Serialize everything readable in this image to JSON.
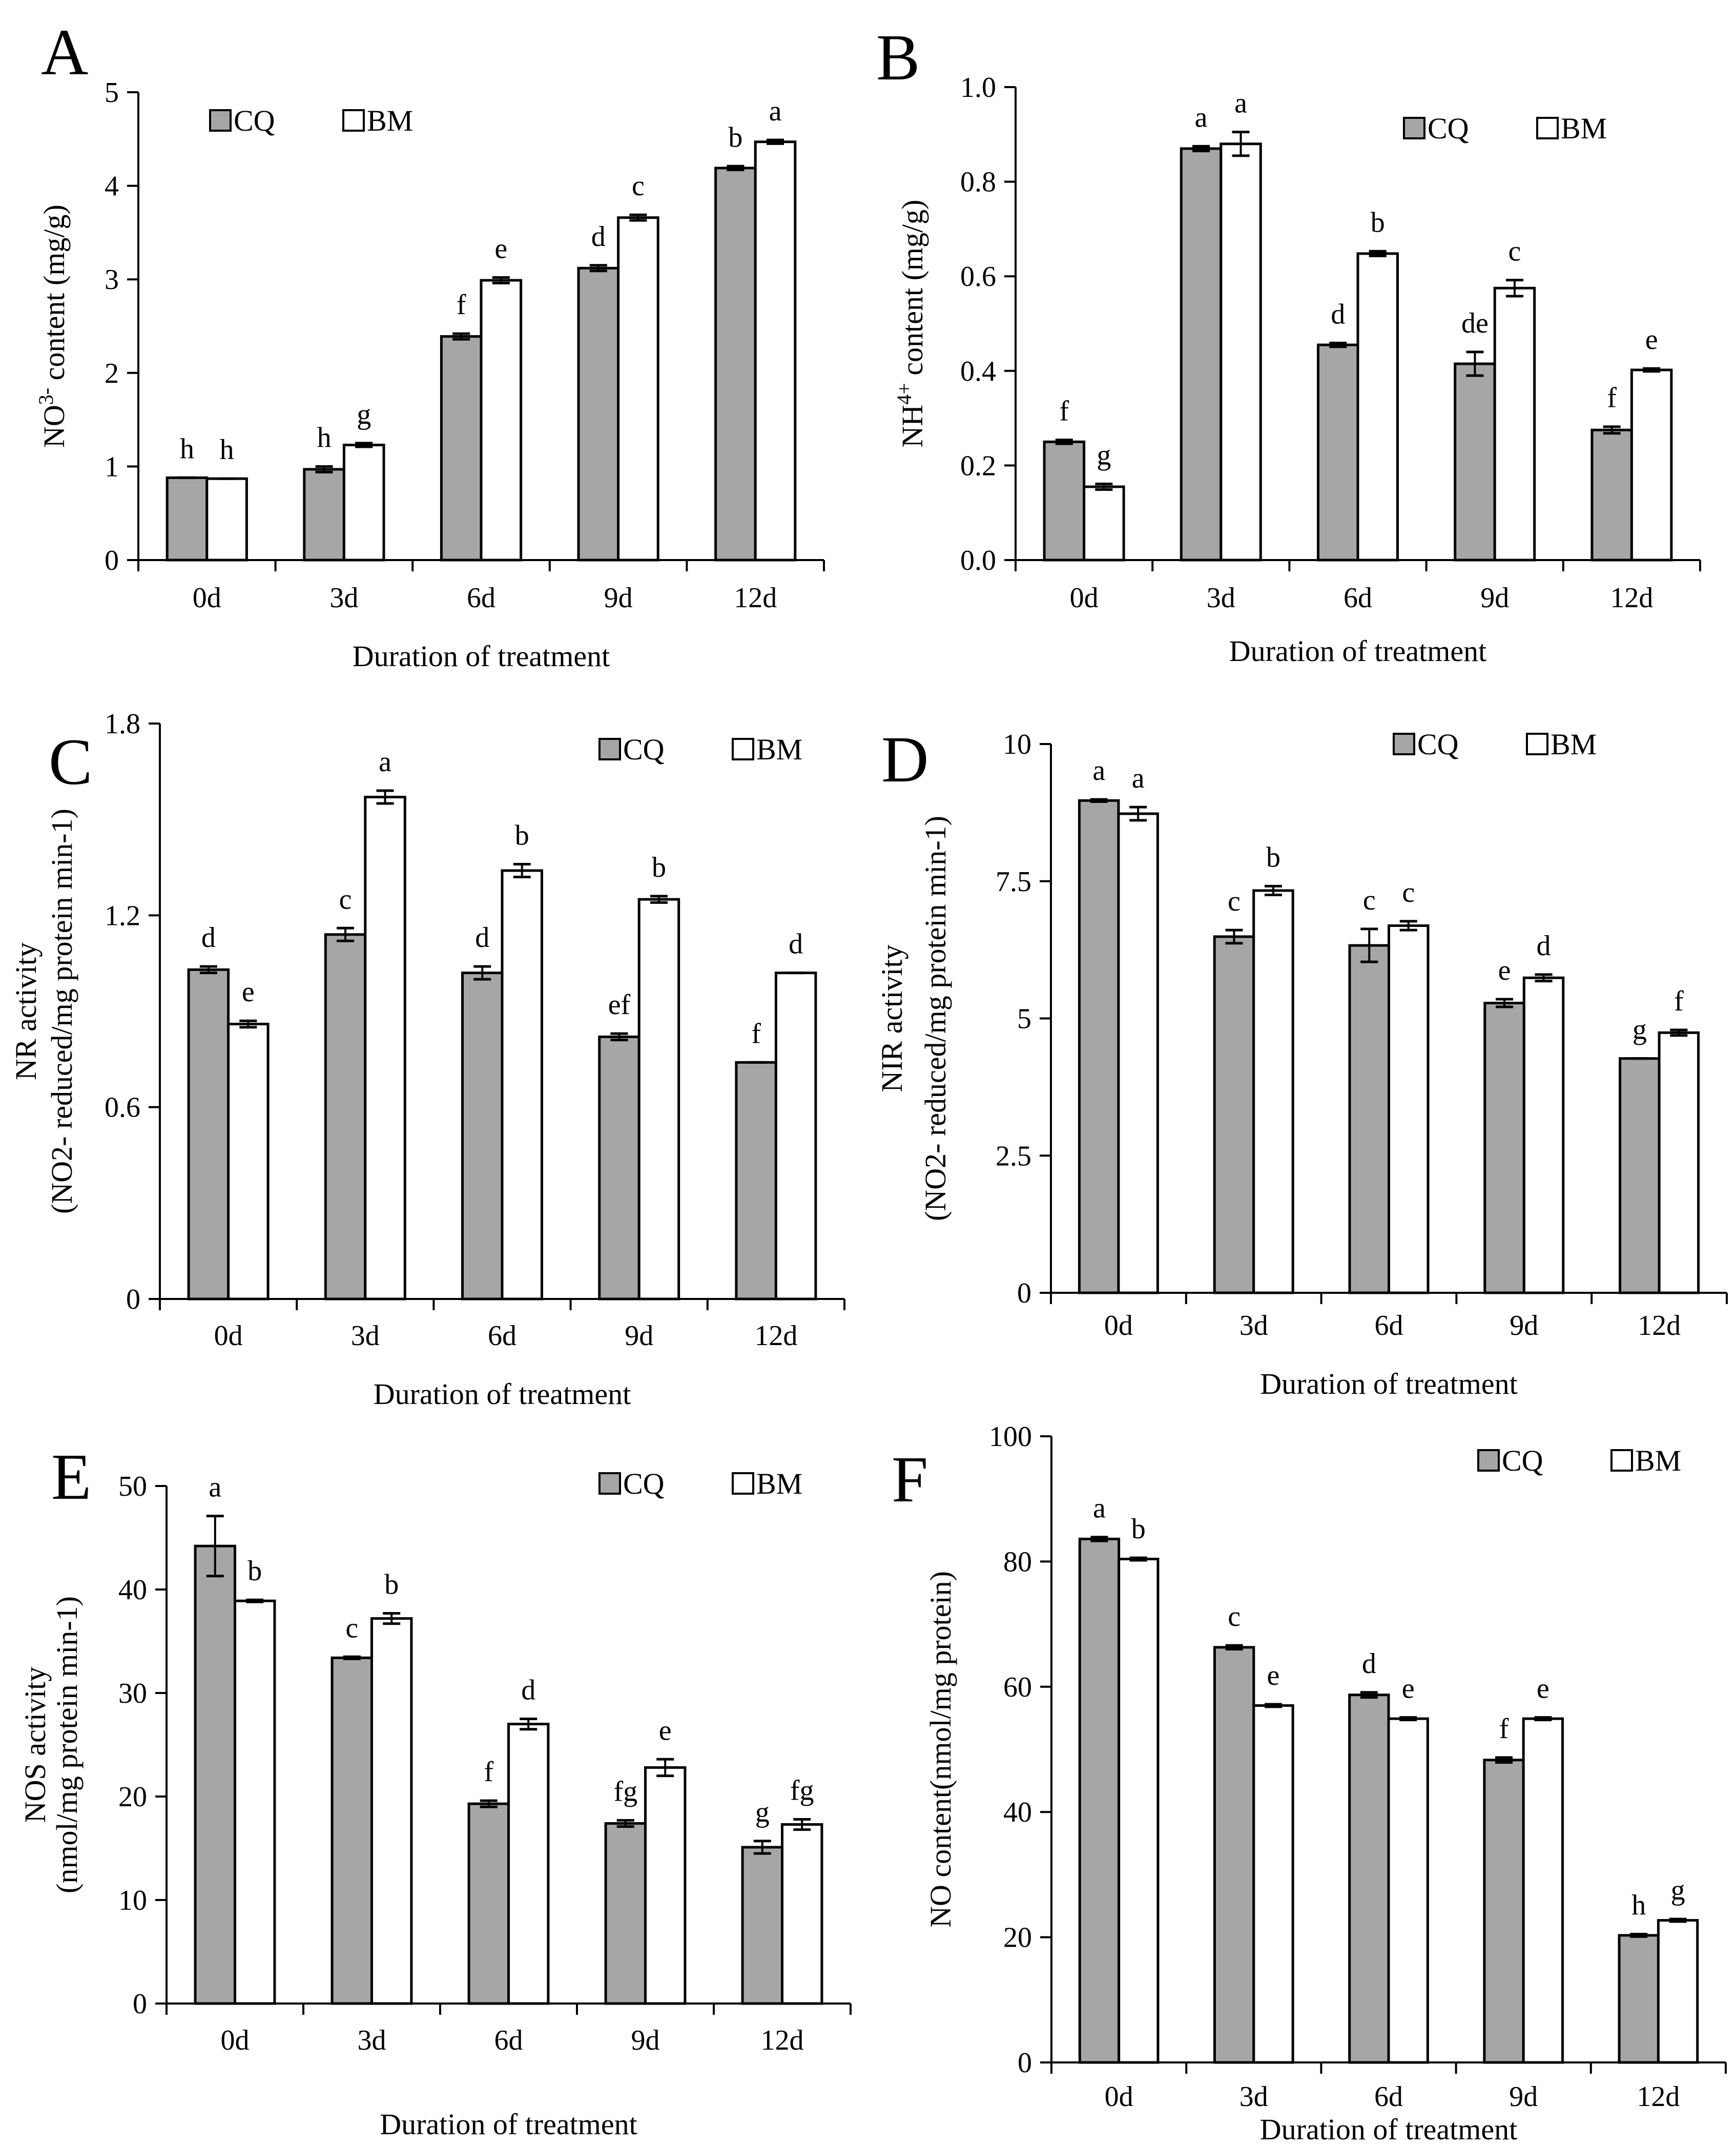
{
  "colors": {
    "CQ": "#a6a6a6",
    "BM": "#ffffff",
    "axis": "#000000"
  },
  "chart_data": [
    {
      "panel": "A",
      "type": "bar",
      "title": "",
      "xlabel": "Duration of treatment",
      "ylabel_parts": [
        "NO",
        "3-",
        " content (mg/g)"
      ],
      "categories": [
        "0d",
        "3d",
        "6d",
        "9d",
        "12d"
      ],
      "ylim": [
        0,
        5
      ],
      "yticks": [
        0,
        1,
        2,
        3,
        4,
        5
      ],
      "ytick_labels": [
        "0",
        "1",
        "2",
        "3",
        "4",
        "5"
      ],
      "legend": [
        "CQ",
        "BM"
      ],
      "legend_position": "top-left",
      "series": [
        {
          "name": "CQ",
          "values": [
            0.88,
            0.97,
            2.39,
            3.12,
            4.19
          ],
          "errors": [
            0.0,
            0.03,
            0.03,
            0.03,
            0.02
          ],
          "letters": [
            "h",
            "h",
            "f",
            "d",
            "b"
          ]
        },
        {
          "name": "BM",
          "values": [
            0.87,
            1.23,
            2.99,
            3.66,
            4.47
          ],
          "errors": [
            0.0,
            0.02,
            0.03,
            0.03,
            0.02
          ],
          "letters": [
            "h",
            "g",
            "e",
            "c",
            "a"
          ]
        }
      ]
    },
    {
      "panel": "B",
      "type": "bar",
      "title": "",
      "xlabel": "Duration of treatment",
      "ylabel_parts": [
        "NH",
        "4+",
        " content (mg/g)"
      ],
      "categories": [
        "0d",
        "3d",
        "6d",
        "9d",
        "12d"
      ],
      "ylim": [
        0,
        1
      ],
      "yticks": [
        0,
        0.2,
        0.4,
        0.6,
        0.8,
        1.0
      ],
      "ytick_labels": [
        "0.0",
        "0.2",
        "0.4",
        "0.6",
        "0.8",
        "1.0"
      ],
      "legend": [
        "CQ",
        "BM"
      ],
      "legend_position": "top-right",
      "series": [
        {
          "name": "CQ",
          "values": [
            0.25,
            0.87,
            0.455,
            0.415,
            0.275
          ],
          "errors": [
            0.004,
            0.005,
            0.004,
            0.025,
            0.007
          ],
          "letters": [
            "f",
            "a",
            "d",
            "de",
            "f"
          ]
        },
        {
          "name": "BM",
          "values": [
            0.155,
            0.88,
            0.648,
            0.575,
            0.402
          ],
          "errors": [
            0.006,
            0.025,
            0.005,
            0.017,
            0.003
          ],
          "letters": [
            "g",
            "a",
            "b",
            "c",
            "e"
          ]
        }
      ]
    },
    {
      "panel": "C",
      "type": "bar",
      "title": "",
      "xlabel": "Duration of treatment",
      "ylabel_lines": [
        "NR activity",
        "(NO2- reduced/mg protein min-1)"
      ],
      "categories": [
        "0d",
        "3d",
        "6d",
        "9d",
        "12d"
      ],
      "ylim": [
        0,
        1.8
      ],
      "yticks": [
        0,
        0.6,
        1.2,
        1.8
      ],
      "ytick_labels": [
        "0",
        "0.6",
        "1.2",
        "1.8"
      ],
      "legend": [
        "CQ",
        "BM"
      ],
      "legend_position": "top-right",
      "series": [
        {
          "name": "CQ",
          "values": [
            1.03,
            1.14,
            1.02,
            0.82,
            0.74
          ],
          "errors": [
            0.01,
            0.02,
            0.02,
            0.01,
            0.0
          ],
          "letters": [
            "d",
            "c",
            "d",
            "ef",
            "f"
          ]
        },
        {
          "name": "BM",
          "values": [
            0.86,
            1.57,
            1.34,
            1.25,
            1.02
          ],
          "errors": [
            0.01,
            0.02,
            0.02,
            0.01,
            0.0
          ],
          "letters": [
            "e",
            "a",
            "b",
            "b",
            "d"
          ]
        }
      ]
    },
    {
      "panel": "D",
      "type": "bar",
      "title": "",
      "xlabel": "Duration of treatment",
      "ylabel_lines": [
        "NIR activity",
        "(NO2- reduced/mg protein min-1)"
      ],
      "categories": [
        "0d",
        "3d",
        "6d",
        "9d",
        "12d"
      ],
      "ylim": [
        0,
        10
      ],
      "yticks": [
        0,
        2.5,
        5,
        7.5,
        10
      ],
      "ytick_labels": [
        "0",
        "2.5",
        "5",
        "7.5",
        "10"
      ],
      "legend": [
        "CQ",
        "BM"
      ],
      "legend_position": "top-right",
      "series": [
        {
          "name": "CQ",
          "values": [
            8.97,
            6.49,
            6.33,
            5.28,
            4.27
          ],
          "errors": [
            0.02,
            0.12,
            0.3,
            0.07,
            0.0
          ],
          "letters": [
            "a",
            "c",
            "c",
            "e",
            "g"
          ]
        },
        {
          "name": "BM",
          "values": [
            8.73,
            7.33,
            6.69,
            5.74,
            4.74
          ],
          "errors": [
            0.12,
            0.08,
            0.08,
            0.06,
            0.05
          ],
          "letters": [
            "a",
            "b",
            "c",
            "d",
            "f"
          ]
        }
      ]
    },
    {
      "panel": "E",
      "type": "bar",
      "title": "",
      "xlabel": "Duration of treatment",
      "ylabel_lines": [
        "NOS activity",
        "(nmol/mg protein min-1)"
      ],
      "categories": [
        "0d",
        "3d",
        "6d",
        "9d",
        "12d"
      ],
      "ylim": [
        0,
        50
      ],
      "yticks": [
        0,
        10,
        20,
        30,
        40,
        50
      ],
      "ytick_labels": [
        "0",
        "10",
        "20",
        "30",
        "40",
        "50"
      ],
      "legend": [
        "CQ",
        "BM"
      ],
      "legend_position": "top-right",
      "series": [
        {
          "name": "CQ",
          "values": [
            44.2,
            33.4,
            19.3,
            17.4,
            15.1
          ],
          "errors": [
            2.9,
            0.1,
            0.3,
            0.3,
            0.6
          ],
          "letters": [
            "a",
            "c",
            "f",
            "fg",
            "g"
          ]
        },
        {
          "name": "BM",
          "values": [
            38.9,
            37.2,
            27.0,
            22.8,
            17.3
          ],
          "errors": [
            0.1,
            0.5,
            0.5,
            0.8,
            0.5
          ],
          "letters": [
            "b",
            "b",
            "d",
            "e",
            "fg"
          ]
        }
      ]
    },
    {
      "panel": "F",
      "type": "bar",
      "title": "",
      "xlabel": "Duration of treatment",
      "ylabel_lines": [
        "NO content(nmol/mg protein)"
      ],
      "categories": [
        "0d",
        "3d",
        "6d",
        "9d",
        "12d"
      ],
      "ylim": [
        0,
        100
      ],
      "yticks": [
        0,
        20,
        40,
        60,
        80,
        100
      ],
      "ytick_labels": [
        "0",
        "20",
        "40",
        "60",
        "80",
        "100"
      ],
      "legend": [
        "CQ",
        "BM"
      ],
      "legend_position": "top-right",
      "series": [
        {
          "name": "CQ",
          "values": [
            83.6,
            66.3,
            58.7,
            48.3,
            20.3
          ],
          "errors": [
            0.3,
            0.3,
            0.4,
            0.4,
            0.2
          ],
          "letters": [
            "a",
            "c",
            "d",
            "f",
            "h"
          ]
        },
        {
          "name": "BM",
          "values": [
            80.4,
            57.0,
            54.9,
            54.9,
            22.7
          ],
          "errors": [
            0.2,
            0.2,
            0.2,
            0.2,
            0.2
          ],
          "letters": [
            "b",
            "e",
            "e",
            "e",
            "g"
          ]
        }
      ]
    }
  ]
}
